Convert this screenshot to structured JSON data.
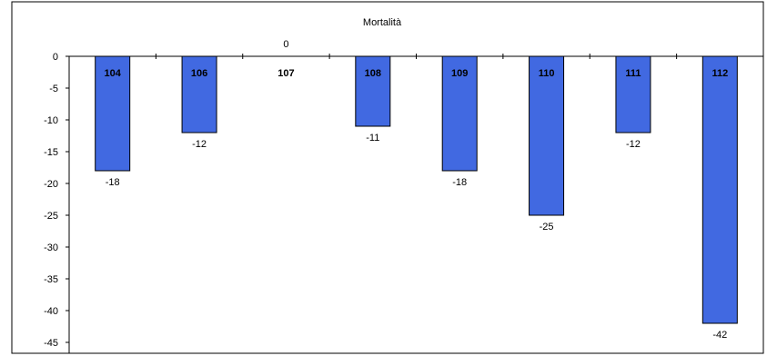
{
  "chart_data": {
    "type": "bar",
    "title": "Mortalità",
    "categories": [
      "104",
      "106",
      "107",
      "108",
      "109",
      "110",
      "111",
      "112"
    ],
    "values": [
      -18,
      -12,
      0,
      -11,
      -18,
      -25,
      -12,
      -42
    ],
    "ylim": [
      -45,
      0
    ],
    "yticks": [
      "0",
      "-5",
      "-10",
      "-15",
      "-20",
      "-25",
      "-30",
      "-35",
      "-40",
      "-45"
    ],
    "grid": false,
    "legend": "none",
    "bar_color": "#4169E1",
    "bar_edge_color": "#000000"
  }
}
